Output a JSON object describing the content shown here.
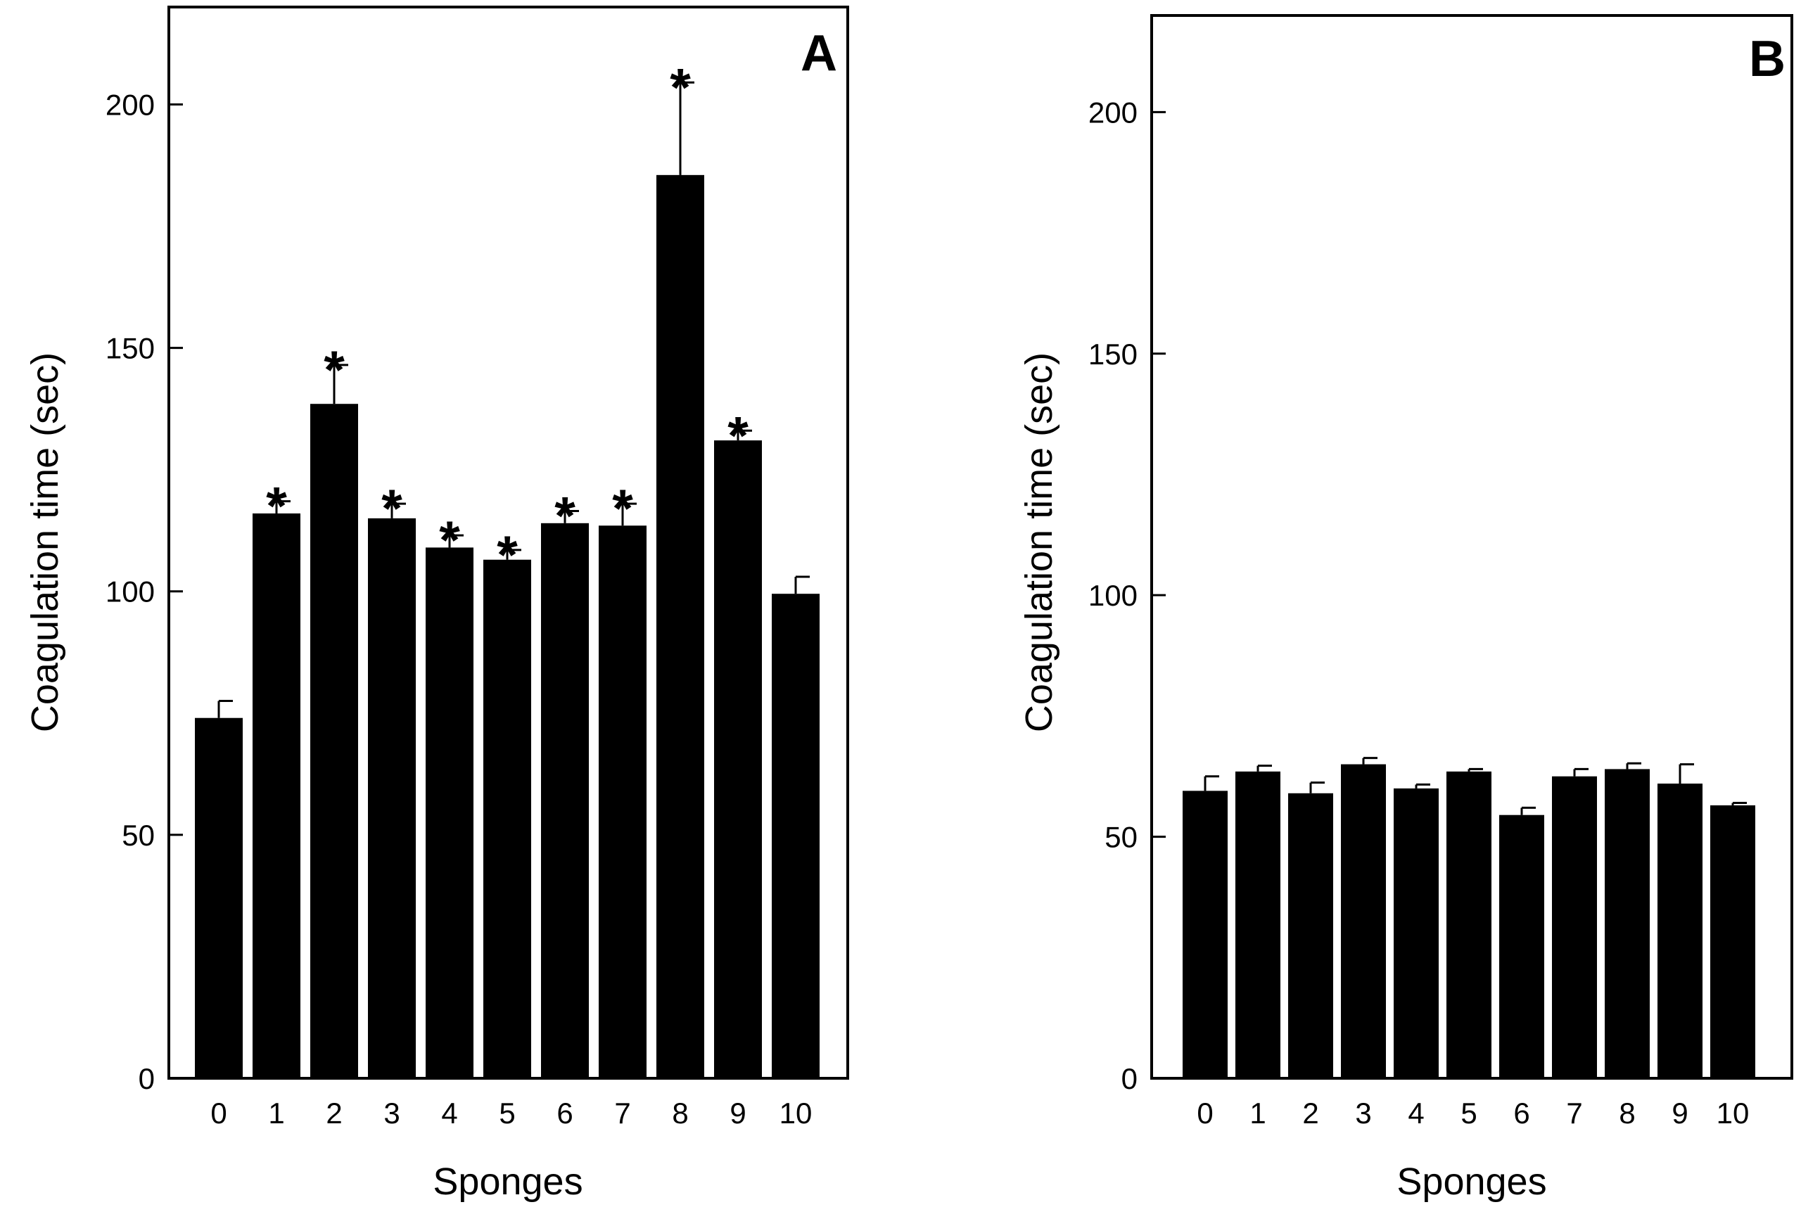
{
  "chart_data": [
    {
      "type": "bar",
      "panel_label": "A",
      "xlabel": "Sponges",
      "ylabel": "Coagulation time (sec)",
      "ylim": [
        0,
        220
      ],
      "yticks": [
        "0",
        "50",
        "100",
        "150",
        "200"
      ],
      "categories": [
        "0",
        "1",
        "2",
        "3",
        "4",
        "5",
        "6",
        "7",
        "8",
        "9",
        "10"
      ],
      "values": [
        74,
        116,
        138.5,
        115,
        109,
        106.5,
        114,
        113.5,
        185.5,
        131,
        99.5
      ],
      "errors": [
        3.5,
        2.5,
        8,
        3,
        2.5,
        2,
        2.5,
        4.5,
        19,
        2,
        3.5
      ],
      "significance": [
        "",
        "*",
        "*",
        "*",
        "*",
        "*",
        "*",
        "*",
        "*",
        "*",
        ""
      ],
      "color": "#000000"
    },
    {
      "type": "bar",
      "panel_label": "B",
      "xlabel": "Sponges",
      "ylabel": "Coagulation time (sec)",
      "ylim": [
        0,
        220
      ],
      "yticks": [
        "0",
        "50",
        "100",
        "150",
        "200"
      ],
      "categories": [
        "0",
        "1",
        "2",
        "3",
        "4",
        "5",
        "6",
        "7",
        "8",
        "9",
        "10"
      ],
      "values": [
        59.5,
        63.5,
        59,
        65,
        60,
        63.5,
        54.5,
        62.5,
        64,
        61,
        56.5
      ],
      "errors": [
        3,
        1.2,
        2.2,
        1.3,
        0.8,
        0.5,
        1.5,
        1.5,
        1.2,
        4,
        0.5
      ],
      "significance": [
        "",
        "",
        "",
        "",
        "",
        "",
        "",
        "",
        "",
        "",
        ""
      ],
      "color": "#000000"
    }
  ]
}
